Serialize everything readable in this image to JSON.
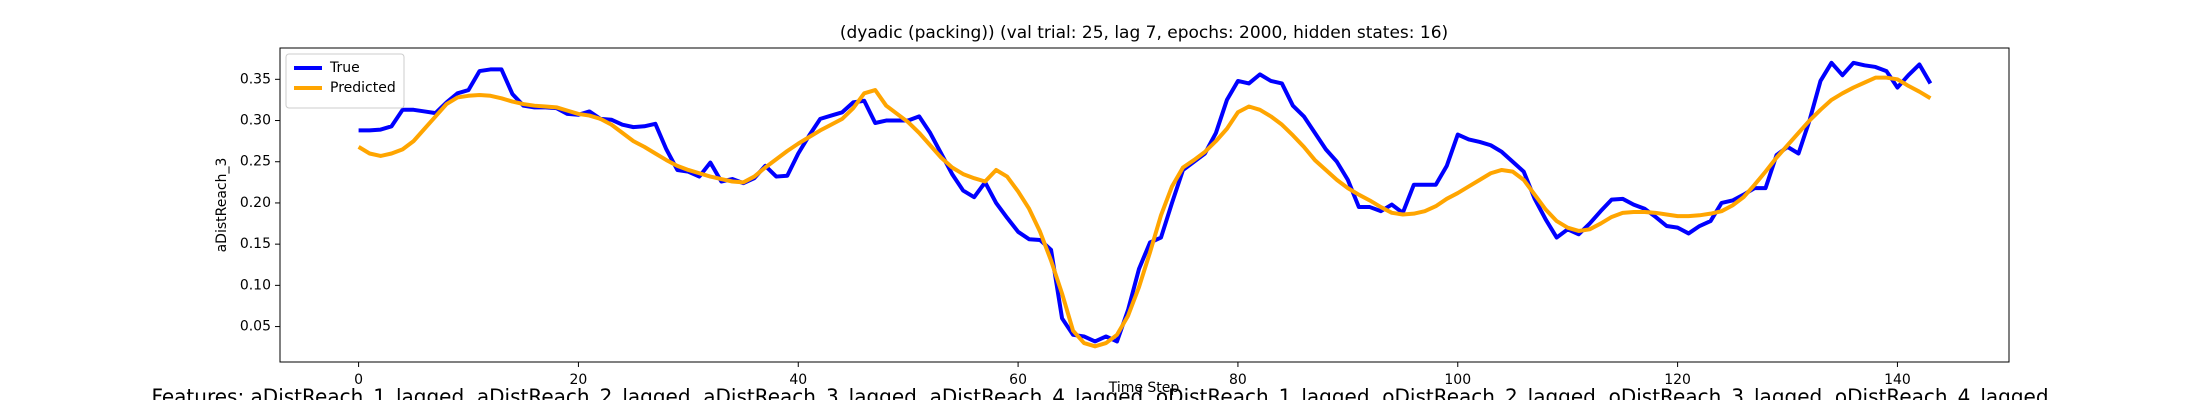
{
  "chart_data": {
    "type": "line",
    "title": "(dyadic (packing)) (val trial: 25, lag 7, epochs: 2000, hidden states: 16)",
    "x_label": "Time Step",
    "y_label": "aDistReach_3",
    "footnote": "Features: aDistReach_1_lagged, aDistReach_2_lagged, aDistReach_3_lagged, aDistReach_4_lagged, oDistReach_1_lagged, oDistReach_2_lagged, oDistReach_3_lagged, oDistReach_4_lagged",
    "x": [
      0,
      1,
      2,
      3,
      4,
      5,
      6,
      7,
      8,
      9,
      10,
      11,
      12,
      13,
      14,
      15,
      16,
      17,
      18,
      19,
      20,
      21,
      22,
      23,
      24,
      25,
      26,
      27,
      28,
      29,
      30,
      31,
      32,
      33,
      34,
      35,
      36,
      37,
      38,
      39,
      40,
      41,
      42,
      43,
      44,
      45,
      46,
      47,
      48,
      49,
      50,
      51,
      52,
      53,
      54,
      55,
      56,
      57,
      58,
      59,
      60,
      61,
      62,
      63,
      64,
      65,
      66,
      67,
      68,
      69,
      70,
      71,
      72,
      73,
      74,
      75,
      76,
      77,
      78,
      79,
      80,
      81,
      82,
      83,
      84,
      85,
      86,
      87,
      88,
      89,
      90,
      91,
      92,
      93,
      94,
      95,
      96,
      97,
      98,
      99,
      100,
      101,
      102,
      103,
      104,
      105,
      106,
      107,
      108,
      109,
      110,
      111,
      112,
      113,
      114,
      115,
      116,
      117,
      118,
      119,
      120,
      121,
      122,
      123,
      124,
      125,
      126,
      127,
      128,
      129,
      130,
      131,
      132,
      133,
      134,
      135,
      136,
      137,
      138,
      139,
      140,
      141,
      142,
      143
    ],
    "series": [
      {
        "name": "True",
        "color": "#0000ff",
        "values": [
          0.288,
          0.288,
          0.289,
          0.293,
          0.313,
          0.313,
          0.311,
          0.309,
          0.322,
          0.333,
          0.337,
          0.36,
          0.362,
          0.362,
          0.332,
          0.318,
          0.316,
          0.316,
          0.315,
          0.308,
          0.307,
          0.311,
          0.302,
          0.301,
          0.295,
          0.292,
          0.293,
          0.296,
          0.265,
          0.24,
          0.238,
          0.232,
          0.249,
          0.226,
          0.229,
          0.224,
          0.23,
          0.245,
          0.232,
          0.233,
          0.26,
          0.282,
          0.302,
          0.306,
          0.31,
          0.322,
          0.324,
          0.297,
          0.3,
          0.3,
          0.3,
          0.305,
          0.285,
          0.26,
          0.235,
          0.215,
          0.207,
          0.225,
          0.2,
          0.182,
          0.165,
          0.156,
          0.155,
          0.143,
          0.06,
          0.04,
          0.038,
          0.032,
          0.038,
          0.032,
          0.07,
          0.12,
          0.152,
          0.158,
          0.2,
          0.24,
          0.25,
          0.26,
          0.285,
          0.325,
          0.348,
          0.345,
          0.356,
          0.348,
          0.345,
          0.318,
          0.305,
          0.285,
          0.265,
          0.25,
          0.228,
          0.195,
          0.195,
          0.19,
          0.198,
          0.188,
          0.222,
          0.222,
          0.222,
          0.245,
          0.283,
          0.277,
          0.274,
          0.27,
          0.262,
          0.25,
          0.238,
          0.205,
          0.18,
          0.158,
          0.168,
          0.162,
          0.175,
          0.19,
          0.204,
          0.205,
          0.198,
          0.193,
          0.183,
          0.172,
          0.17,
          0.163,
          0.172,
          0.178,
          0.2,
          0.203,
          0.21,
          0.218,
          0.218,
          0.258,
          0.268,
          0.26,
          0.3,
          0.348,
          0.37,
          0.355,
          0.37,
          0.367,
          0.365,
          0.36,
          0.34,
          0.355,
          0.368,
          0.345
        ]
      },
      {
        "name": "Predicted",
        "color": "#ffa500",
        "values": [
          0.268,
          0.26,
          0.257,
          0.26,
          0.265,
          0.275,
          0.29,
          0.305,
          0.32,
          0.328,
          0.33,
          0.331,
          0.33,
          0.327,
          0.323,
          0.32,
          0.318,
          0.317,
          0.316,
          0.312,
          0.308,
          0.306,
          0.302,
          0.295,
          0.285,
          0.275,
          0.268,
          0.26,
          0.252,
          0.245,
          0.24,
          0.236,
          0.232,
          0.229,
          0.226,
          0.225,
          0.232,
          0.243,
          0.253,
          0.263,
          0.272,
          0.28,
          0.288,
          0.295,
          0.302,
          0.315,
          0.333,
          0.337,
          0.318,
          0.308,
          0.298,
          0.285,
          0.27,
          0.255,
          0.243,
          0.235,
          0.23,
          0.226,
          0.24,
          0.232,
          0.214,
          0.193,
          0.165,
          0.13,
          0.09,
          0.045,
          0.03,
          0.026,
          0.03,
          0.04,
          0.063,
          0.098,
          0.14,
          0.185,
          0.22,
          0.243,
          0.252,
          0.262,
          0.275,
          0.29,
          0.31,
          0.317,
          0.313,
          0.305,
          0.295,
          0.282,
          0.268,
          0.252,
          0.24,
          0.228,
          0.218,
          0.21,
          0.203,
          0.195,
          0.188,
          0.186,
          0.187,
          0.19,
          0.196,
          0.205,
          0.212,
          0.22,
          0.228,
          0.236,
          0.24,
          0.238,
          0.228,
          0.21,
          0.192,
          0.178,
          0.17,
          0.166,
          0.168,
          0.175,
          0.183,
          0.188,
          0.189,
          0.189,
          0.188,
          0.186,
          0.184,
          0.184,
          0.185,
          0.187,
          0.19,
          0.197,
          0.207,
          0.222,
          0.238,
          0.255,
          0.27,
          0.285,
          0.3,
          0.313,
          0.325,
          0.333,
          0.34,
          0.346,
          0.352,
          0.352,
          0.35,
          0.342,
          0.335,
          0.327
        ]
      }
    ],
    "xlim": [
      -7.15,
      150.15
    ],
    "ylim": [
      0.007,
      0.388
    ],
    "xticks": [
      0,
      20,
      40,
      60,
      80,
      100,
      120,
      140
    ],
    "yticks": [
      0.05,
      {
        "value": 0.1,
        "label": "0.10"
      },
      0.15,
      {
        "value": 0.2,
        "label": "0.20"
      },
      0.25,
      {
        "value": 0.3,
        "label": "0.30"
      },
      0.35
    ],
    "legend": "upper left"
  }
}
